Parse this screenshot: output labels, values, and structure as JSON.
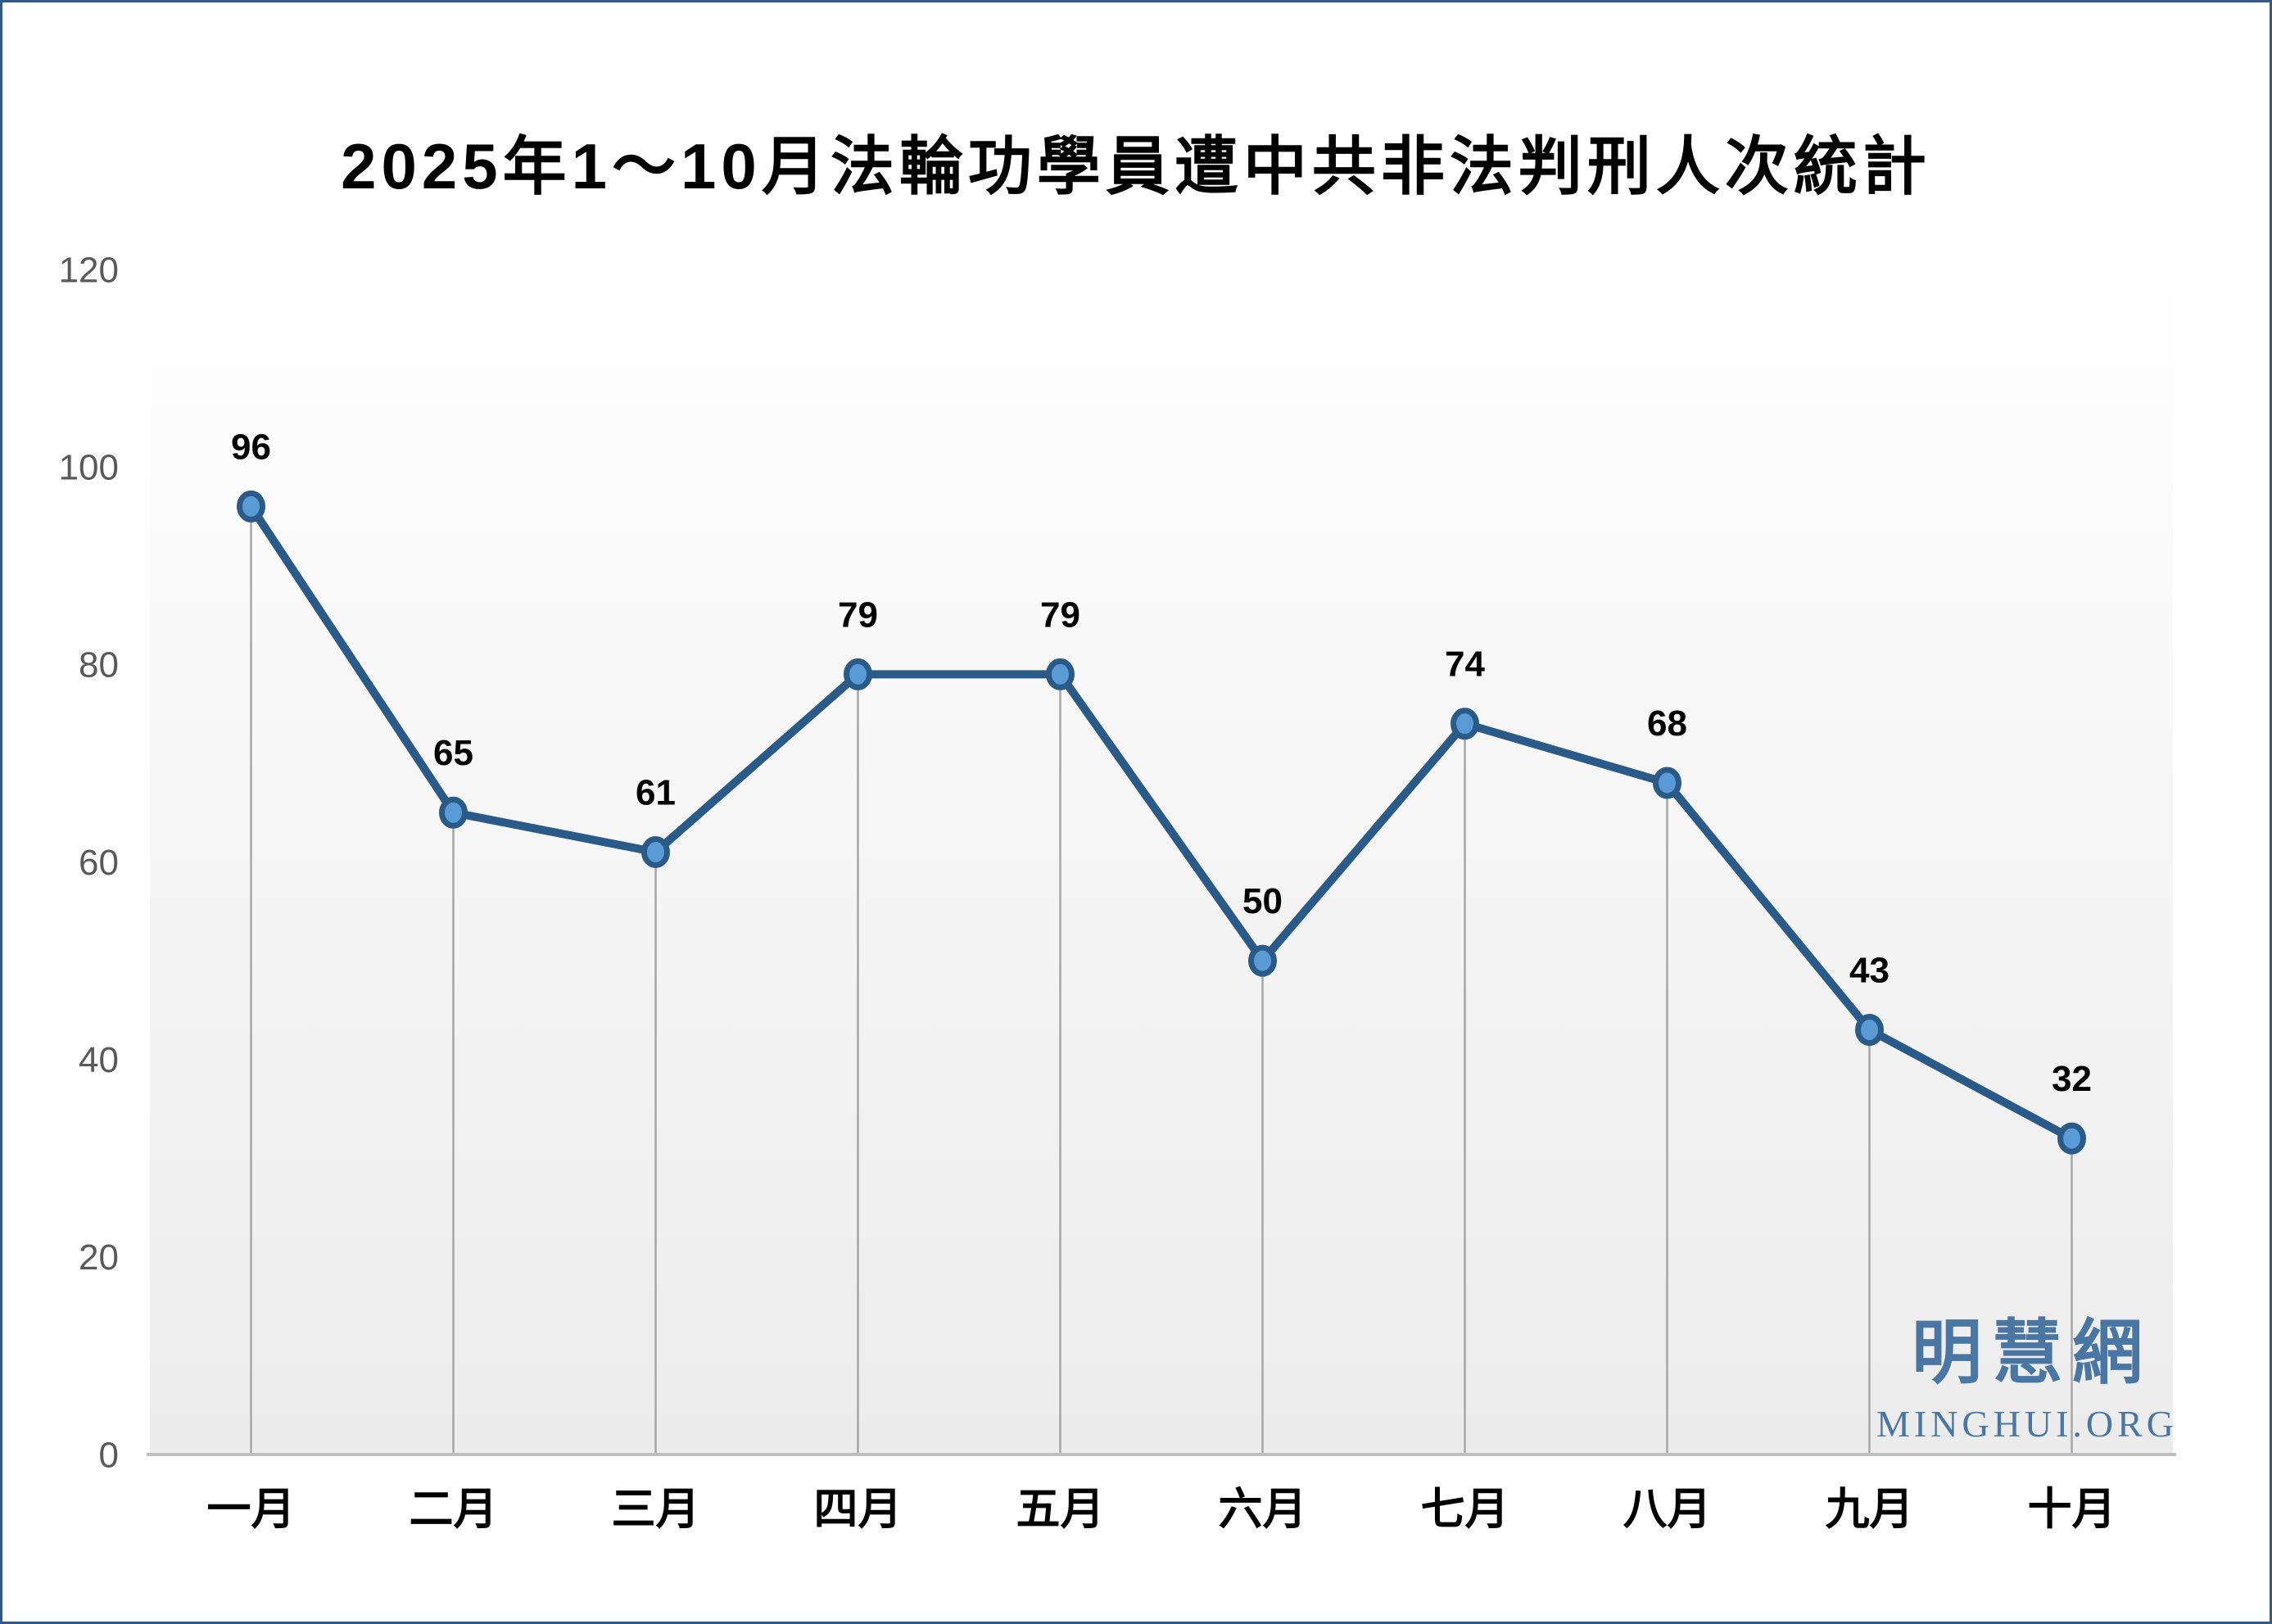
{
  "title": "2025年1～10月法輪功學員遭中共非法判刑人次統計",
  "watermark": {
    "cjk": "明慧網",
    "latin": "MINGHUI.ORG",
    "color": "#4A76A3"
  },
  "colors": {
    "line": "#2A5A87",
    "marker_fill": "#5B9BD5",
    "marker_stroke": "#2A5A87",
    "drop_line": "#A6A6A6",
    "axis_line": "#BFBFBF",
    "tick_label": "#595959",
    "data_label": "#000000",
    "category_label": "#000000",
    "title_color": "#000000",
    "plot_bg_top": "#FFFFFF",
    "plot_bg_bottom": "#ECECEC",
    "border": "#315A87"
  },
  "chart_data": {
    "type": "line",
    "title": "2025年1～10月法輪功學員遭中共非法判刑人次統計",
    "categories": [
      "一月",
      "二月",
      "三月",
      "四月",
      "五月",
      "六月",
      "七月",
      "八月",
      "九月",
      "十月"
    ],
    "values": [
      96,
      65,
      61,
      79,
      79,
      50,
      74,
      68,
      43,
      32
    ],
    "xlabel": "",
    "ylabel": "",
    "ylim": [
      0,
      120
    ],
    "yticks": [
      0,
      20,
      40,
      60,
      80,
      100,
      120
    ],
    "grid": false,
    "legend": false,
    "data_labels": true,
    "drop_lines": true,
    "marker": "circle"
  }
}
